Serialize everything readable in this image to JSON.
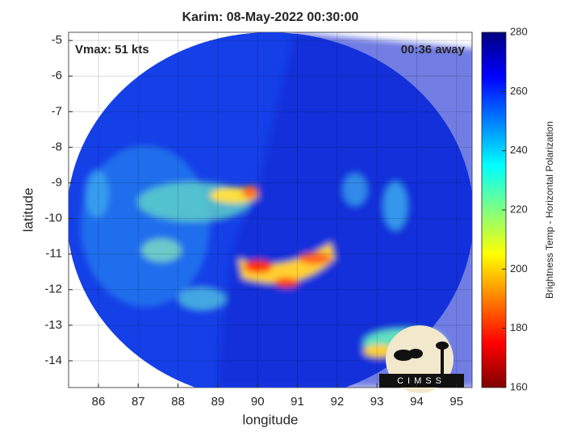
{
  "chart_data": {
    "type": "map",
    "title": "Karim: 08-May-2022 00:30:00",
    "xlabel": "longitude",
    "ylabel": "latitude",
    "xlim": [
      85.25,
      95.39
    ],
    "xticks": [
      86,
      87,
      88,
      89,
      90,
      91,
      92,
      93,
      94,
      95
    ],
    "ylim": [
      -14.75,
      -4.77
    ],
    "yticks": [
      -5,
      -6,
      -7,
      -8,
      -9,
      -10,
      -11,
      -12,
      -13,
      -14
    ],
    "grid": true,
    "annotations": [
      "Vmax: 51 kts",
      "00:36 away"
    ],
    "colorbar": {
      "label": "Brightness Temp - Horizontal Polarization",
      "lim": [
        160,
        280
      ],
      "ticks": [
        160,
        180,
        200,
        220,
        240,
        260,
        280
      ]
    },
    "logo": "CIMSS"
  }
}
